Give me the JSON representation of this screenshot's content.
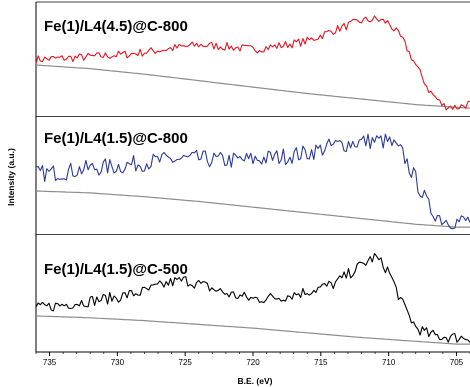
{
  "chart_data": {
    "type": "line",
    "xlabel": "B.E. (eV)",
    "ylabel": "Intensity (a.u.)",
    "xlim": [
      736,
      704
    ],
    "x_reversed": true,
    "x_ticks": [
      735,
      730,
      725,
      720,
      715,
      710,
      705
    ],
    "y_ticks": [],
    "grid": false,
    "panels": [
      {
        "label": "Fe(1)/L4(4.5)@C-800",
        "color": "#e8141e",
        "signal": [
          [
            736,
            0.56
          ],
          [
            733,
            0.58
          ],
          [
            729,
            0.62
          ],
          [
            726,
            0.68
          ],
          [
            724,
            0.72
          ],
          [
            722,
            0.7
          ],
          [
            720,
            0.67
          ],
          [
            718,
            0.71
          ],
          [
            716,
            0.76
          ],
          [
            714,
            0.88
          ],
          [
            712,
            0.98
          ],
          [
            711,
            1.0
          ],
          [
            710,
            0.96
          ],
          [
            709,
            0.78
          ],
          [
            708,
            0.5
          ],
          [
            707,
            0.22
          ],
          [
            706,
            0.06
          ],
          [
            705,
            0.04
          ],
          [
            704,
            0.08
          ]
        ],
        "background": [
          [
            736,
            0.5
          ],
          [
            732,
            0.46
          ],
          [
            728,
            0.4
          ],
          [
            724,
            0.33
          ],
          [
            720,
            0.26
          ],
          [
            716,
            0.19
          ],
          [
            712,
            0.13
          ],
          [
            708,
            0.07
          ],
          [
            705,
            0.04
          ],
          [
            704,
            0.03
          ]
        ]
      },
      {
        "label": "Fe(1)/L4(1.5)@C-800",
        "color": "#2b3a9b",
        "signal": [
          [
            736,
            0.58
          ],
          [
            734,
            0.6
          ],
          [
            732,
            0.64
          ],
          [
            730,
            0.66
          ],
          [
            728,
            0.7
          ],
          [
            726,
            0.73
          ],
          [
            724,
            0.74
          ],
          [
            722,
            0.72
          ],
          [
            720,
            0.73
          ],
          [
            718,
            0.76
          ],
          [
            716,
            0.8
          ],
          [
            714,
            0.88
          ],
          [
            712,
            0.92
          ],
          [
            711,
            0.93
          ],
          [
            710,
            0.92
          ],
          [
            709,
            0.8
          ],
          [
            708,
            0.52
          ],
          [
            707,
            0.22
          ],
          [
            706,
            0.1
          ],
          [
            705,
            0.08
          ],
          [
            704,
            0.09
          ]
        ],
        "background": [
          [
            736,
            0.4
          ],
          [
            732,
            0.38
          ],
          [
            728,
            0.34
          ],
          [
            724,
            0.29
          ],
          [
            720,
            0.23
          ],
          [
            716,
            0.17
          ],
          [
            712,
            0.11
          ],
          [
            708,
            0.05
          ],
          [
            705,
            0.02
          ],
          [
            704,
            0.02
          ]
        ]
      },
      {
        "label": "Fe(1)/L4(1.5)@C-500",
        "color": "#000000",
        "signal": [
          [
            736,
            0.4
          ],
          [
            734,
            0.44
          ],
          [
            732,
            0.48
          ],
          [
            730,
            0.52
          ],
          [
            728,
            0.58
          ],
          [
            726,
            0.68
          ],
          [
            725,
            0.7
          ],
          [
            724,
            0.66
          ],
          [
            722,
            0.56
          ],
          [
            720,
            0.5
          ],
          [
            718,
            0.52
          ],
          [
            716,
            0.58
          ],
          [
            714,
            0.66
          ],
          [
            713,
            0.76
          ],
          [
            712,
            0.86
          ],
          [
            711,
            0.95
          ],
          [
            710,
            0.8
          ],
          [
            709,
            0.45
          ],
          [
            708,
            0.2
          ],
          [
            707,
            0.12
          ],
          [
            706,
            0.1
          ],
          [
            705,
            0.09
          ]
        ],
        "background": [
          [
            736,
            0.32
          ],
          [
            732,
            0.3
          ],
          [
            728,
            0.27
          ],
          [
            724,
            0.23
          ],
          [
            720,
            0.19
          ],
          [
            716,
            0.14
          ],
          [
            712,
            0.09
          ],
          [
            708,
            0.05
          ],
          [
            706,
            0.03
          ],
          [
            705,
            0.02
          ]
        ]
      }
    ]
  }
}
